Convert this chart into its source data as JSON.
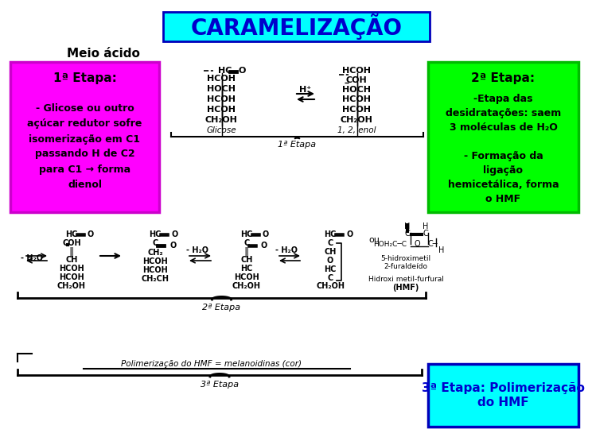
{
  "title": "CARAMELIZAÇÃO",
  "title_bg": "#00FFFF",
  "title_color": "#0000CC",
  "bg_color": "#FFFFFF",
  "meio_acido_text": "Meio ácido",
  "box1_bg": "#FF00FF",
  "box1_title": "1ª Etapa:",
  "box1_body": "- Glicose ou outro\naçúcar redutor sofre\nisomerização em C1\npassando H de C2\npara C1 → forma\ndienol",
  "box2_bg": "#00FF00",
  "box2_title": "2ª Etapa:",
  "box2_body": "-Etapa das\ndesidratações: saem\n3 moléculas de H₂O\n\n- Formação da\nligação\nhemicetálica, forma\no HMF",
  "box3_bg": "#00FFFF",
  "box3_title": "3ª Etapa: Polimerização\ndo HMF",
  "box3_color": "#0000CC",
  "diagram_1etapa": "1ª Etapa",
  "diagram_2etapa": "2ª Etapa",
  "diagram_3etapa": "3ª Etapa",
  "polimerization_text": "Polimerização do HMF = melanoidinas (cor)"
}
